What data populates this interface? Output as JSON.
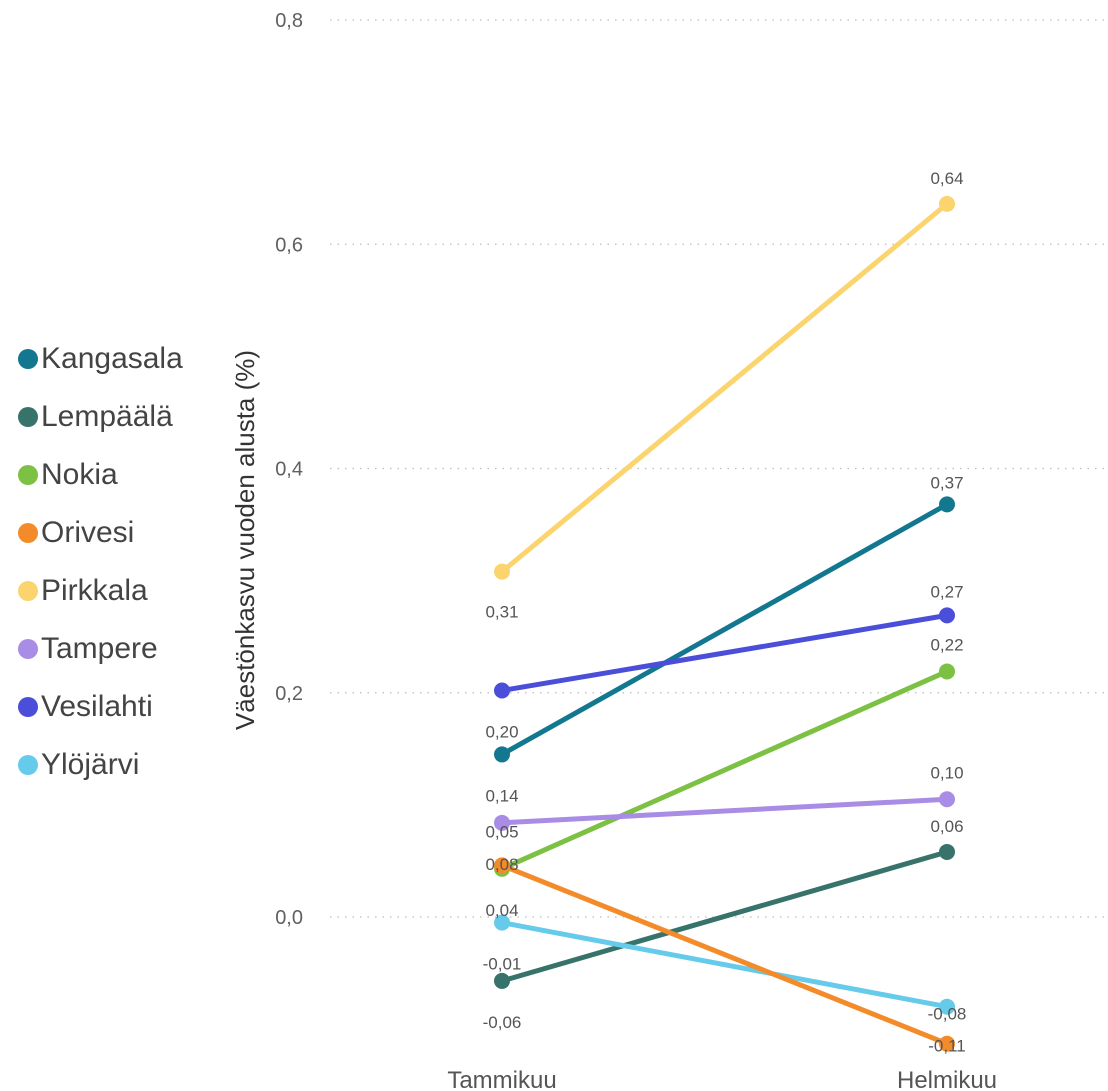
{
  "chart_data": {
    "type": "line",
    "title": "",
    "ylabel": "Väestönkasvu vuoden alusta (%)",
    "xlabel": "",
    "categories": [
      "Tammikuu",
      "Helmikuu"
    ],
    "ylim": [
      -0.15,
      0.8
    ],
    "yticks": [
      0.0,
      0.2,
      0.4,
      0.6,
      0.8
    ],
    "ytick_labels": [
      "0,0",
      "0,2",
      "0,4",
      "0,6",
      "0,8"
    ],
    "grid": true,
    "legend_position": "left",
    "series": [
      {
        "name": "Kangasala",
        "color": "#12778f",
        "values": [
          0.145,
          0.368
        ],
        "labels": [
          "0,14",
          "0,37"
        ]
      },
      {
        "name": "Lempäälä",
        "color": "#37736a",
        "values": [
          -0.057,
          0.058
        ],
        "labels": [
          "-0,06",
          "0,06"
        ]
      },
      {
        "name": "Nokia",
        "color": "#7cc144",
        "values": [
          0.043,
          0.219
        ],
        "labels": [
          "0,04",
          "0,22"
        ]
      },
      {
        "name": "Orivesi",
        "color": "#f48b2a",
        "values": [
          0.046,
          -0.113
        ],
        "labels": [
          "0,05",
          "-0,11"
        ]
      },
      {
        "name": "Pirkkala",
        "color": "#fbd46e",
        "values": [
          0.308,
          0.636
        ],
        "labels": [
          "0,31",
          "0,64"
        ]
      },
      {
        "name": "Tampere",
        "color": "#a98ce6",
        "values": [
          0.084,
          0.105
        ],
        "labels": [
          "0,08",
          "0,10"
        ]
      },
      {
        "name": "Vesilahti",
        "color": "#4a4ed8",
        "values": [
          0.202,
          0.269
        ],
        "labels": [
          "0,20",
          "0,27"
        ]
      },
      {
        "name": "Ylöjärvi",
        "color": "#66cbeb",
        "values": [
          -0.005,
          -0.08
        ],
        "labels": [
          "-0,01",
          "-0,08"
        ]
      }
    ]
  }
}
